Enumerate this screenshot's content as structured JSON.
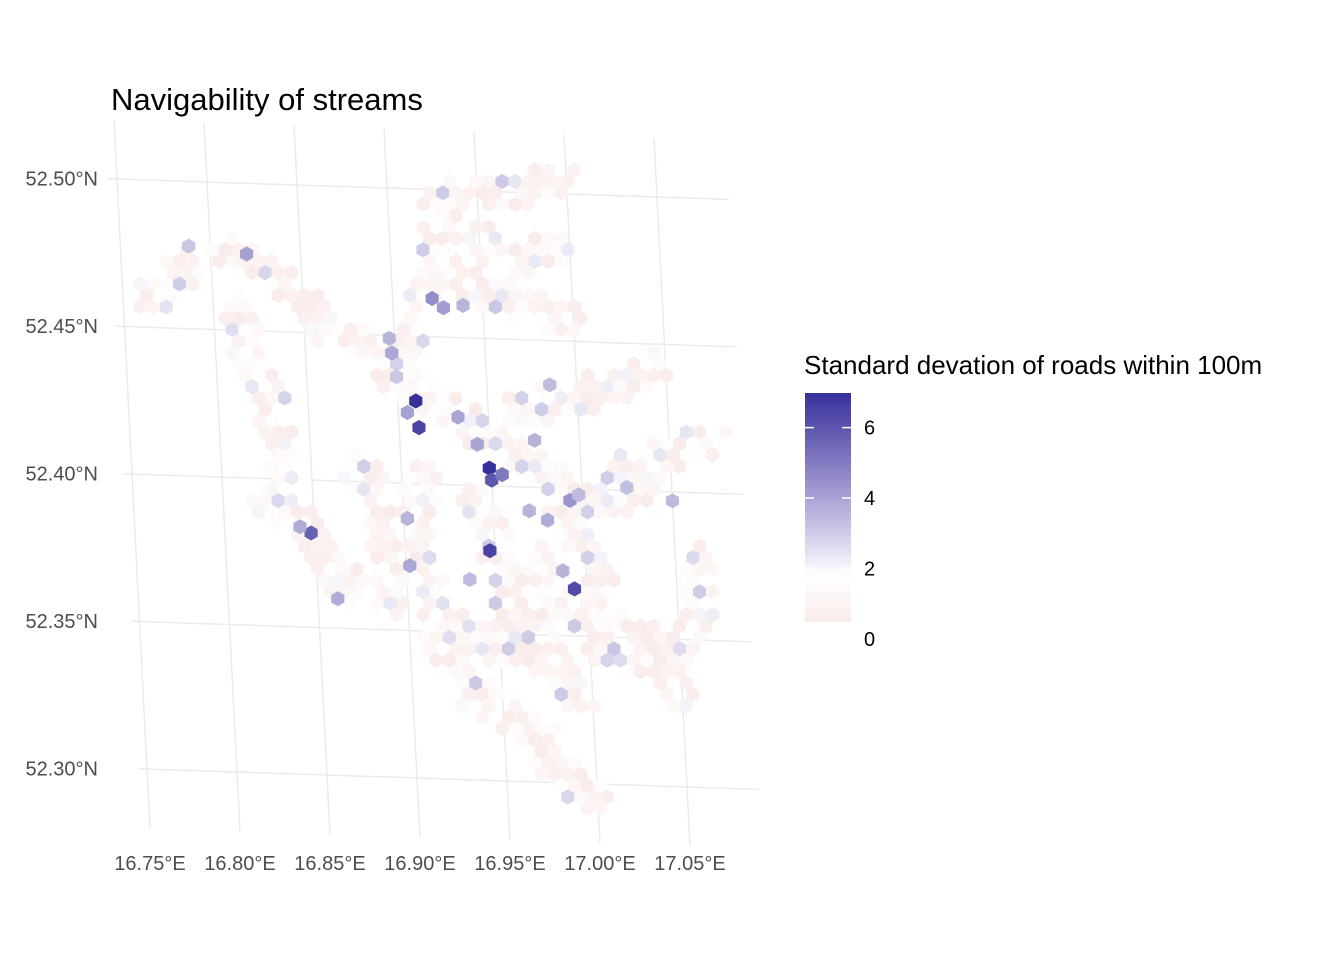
{
  "chart_data": {
    "type": "heatmap",
    "title": "Navigability of streams",
    "xlabel": "",
    "ylabel": "",
    "x_ticks": [
      "16.75°E",
      "16.80°E",
      "16.85°E",
      "16.90°E",
      "16.95°E",
      "17.00°E",
      "17.05°E"
    ],
    "y_ticks": [
      "52.30°N",
      "52.35°N",
      "52.40°N",
      "52.45°N",
      "52.50°N"
    ],
    "grid": true,
    "legend": {
      "title": "Standard devation of roads within 100m",
      "placement": "right",
      "ticks": [
        "0",
        "2",
        "4",
        "6"
      ],
      "range": [
        0,
        6.5
      ],
      "colors": {
        "low": "#f9ecea",
        "mid": "#ffffff",
        "high": "#38309a"
      }
    },
    "hexbins": [
      {
        "lon": 16.91,
        "lat": 52.428,
        "value": 6.5
      },
      {
        "lon": 16.911,
        "lat": 52.419,
        "value": 6.0
      },
      {
        "lon": 16.905,
        "lat": 52.424,
        "value": 3.5
      },
      {
        "lon": 16.9,
        "lat": 52.436,
        "value": 2.5
      },
      {
        "lon": 16.897,
        "lat": 52.449,
        "value": 3.0
      },
      {
        "lon": 16.898,
        "lat": 52.444,
        "value": 3.3
      },
      {
        "lon": 16.922,
        "lat": 52.463,
        "value": 4.0
      },
      {
        "lon": 16.928,
        "lat": 52.46,
        "value": 3.6
      },
      {
        "lon": 16.939,
        "lat": 52.461,
        "value": 3.0
      },
      {
        "lon": 16.933,
        "lat": 52.423,
        "value": 3.4
      },
      {
        "lon": 16.943,
        "lat": 52.414,
        "value": 3.4
      },
      {
        "lon": 16.949,
        "lat": 52.406,
        "value": 6.5
      },
      {
        "lon": 16.95,
        "lat": 52.402,
        "value": 5.5
      },
      {
        "lon": 16.956,
        "lat": 52.404,
        "value": 4.5
      },
      {
        "lon": 16.947,
        "lat": 52.378,
        "value": 6.0
      },
      {
        "lon": 16.993,
        "lat": 52.366,
        "value": 5.8
      },
      {
        "lon": 16.848,
        "lat": 52.382,
        "value": 5.2
      },
      {
        "lon": 16.842,
        "lat": 52.384,
        "value": 3.2
      },
      {
        "lon": 16.993,
        "lat": 52.396,
        "value": 3.8
      },
      {
        "lon": 16.998,
        "lat": 52.398,
        "value": 2.8
      },
      {
        "lon": 16.97,
        "lat": 52.392,
        "value": 3.0
      },
      {
        "lon": 16.98,
        "lat": 52.389,
        "value": 3.2
      },
      {
        "lon": 16.975,
        "lat": 52.416,
        "value": 3.0
      },
      {
        "lon": 16.82,
        "lat": 52.476,
        "value": 3.5
      },
      {
        "lon": 16.788,
        "lat": 52.478,
        "value": 2.5
      },
      {
        "lon": 16.861,
        "lat": 52.36,
        "value": 3.2
      },
      {
        "lon": 16.902,
        "lat": 52.388,
        "value": 3.0
      },
      {
        "lon": 16.902,
        "lat": 52.372,
        "value": 3.3
      },
      {
        "lon": 16.935,
        "lat": 52.368,
        "value": 2.8
      },
      {
        "lon": 16.987,
        "lat": 52.372,
        "value": 3.0
      },
      {
        "lon": 16.985,
        "lat": 52.435,
        "value": 2.8
      },
      {
        "lon": 17.025,
        "lat": 52.401,
        "value": 2.7
      },
      {
        "lon": 17.05,
        "lat": 52.397,
        "value": 2.8
      }
    ]
  }
}
